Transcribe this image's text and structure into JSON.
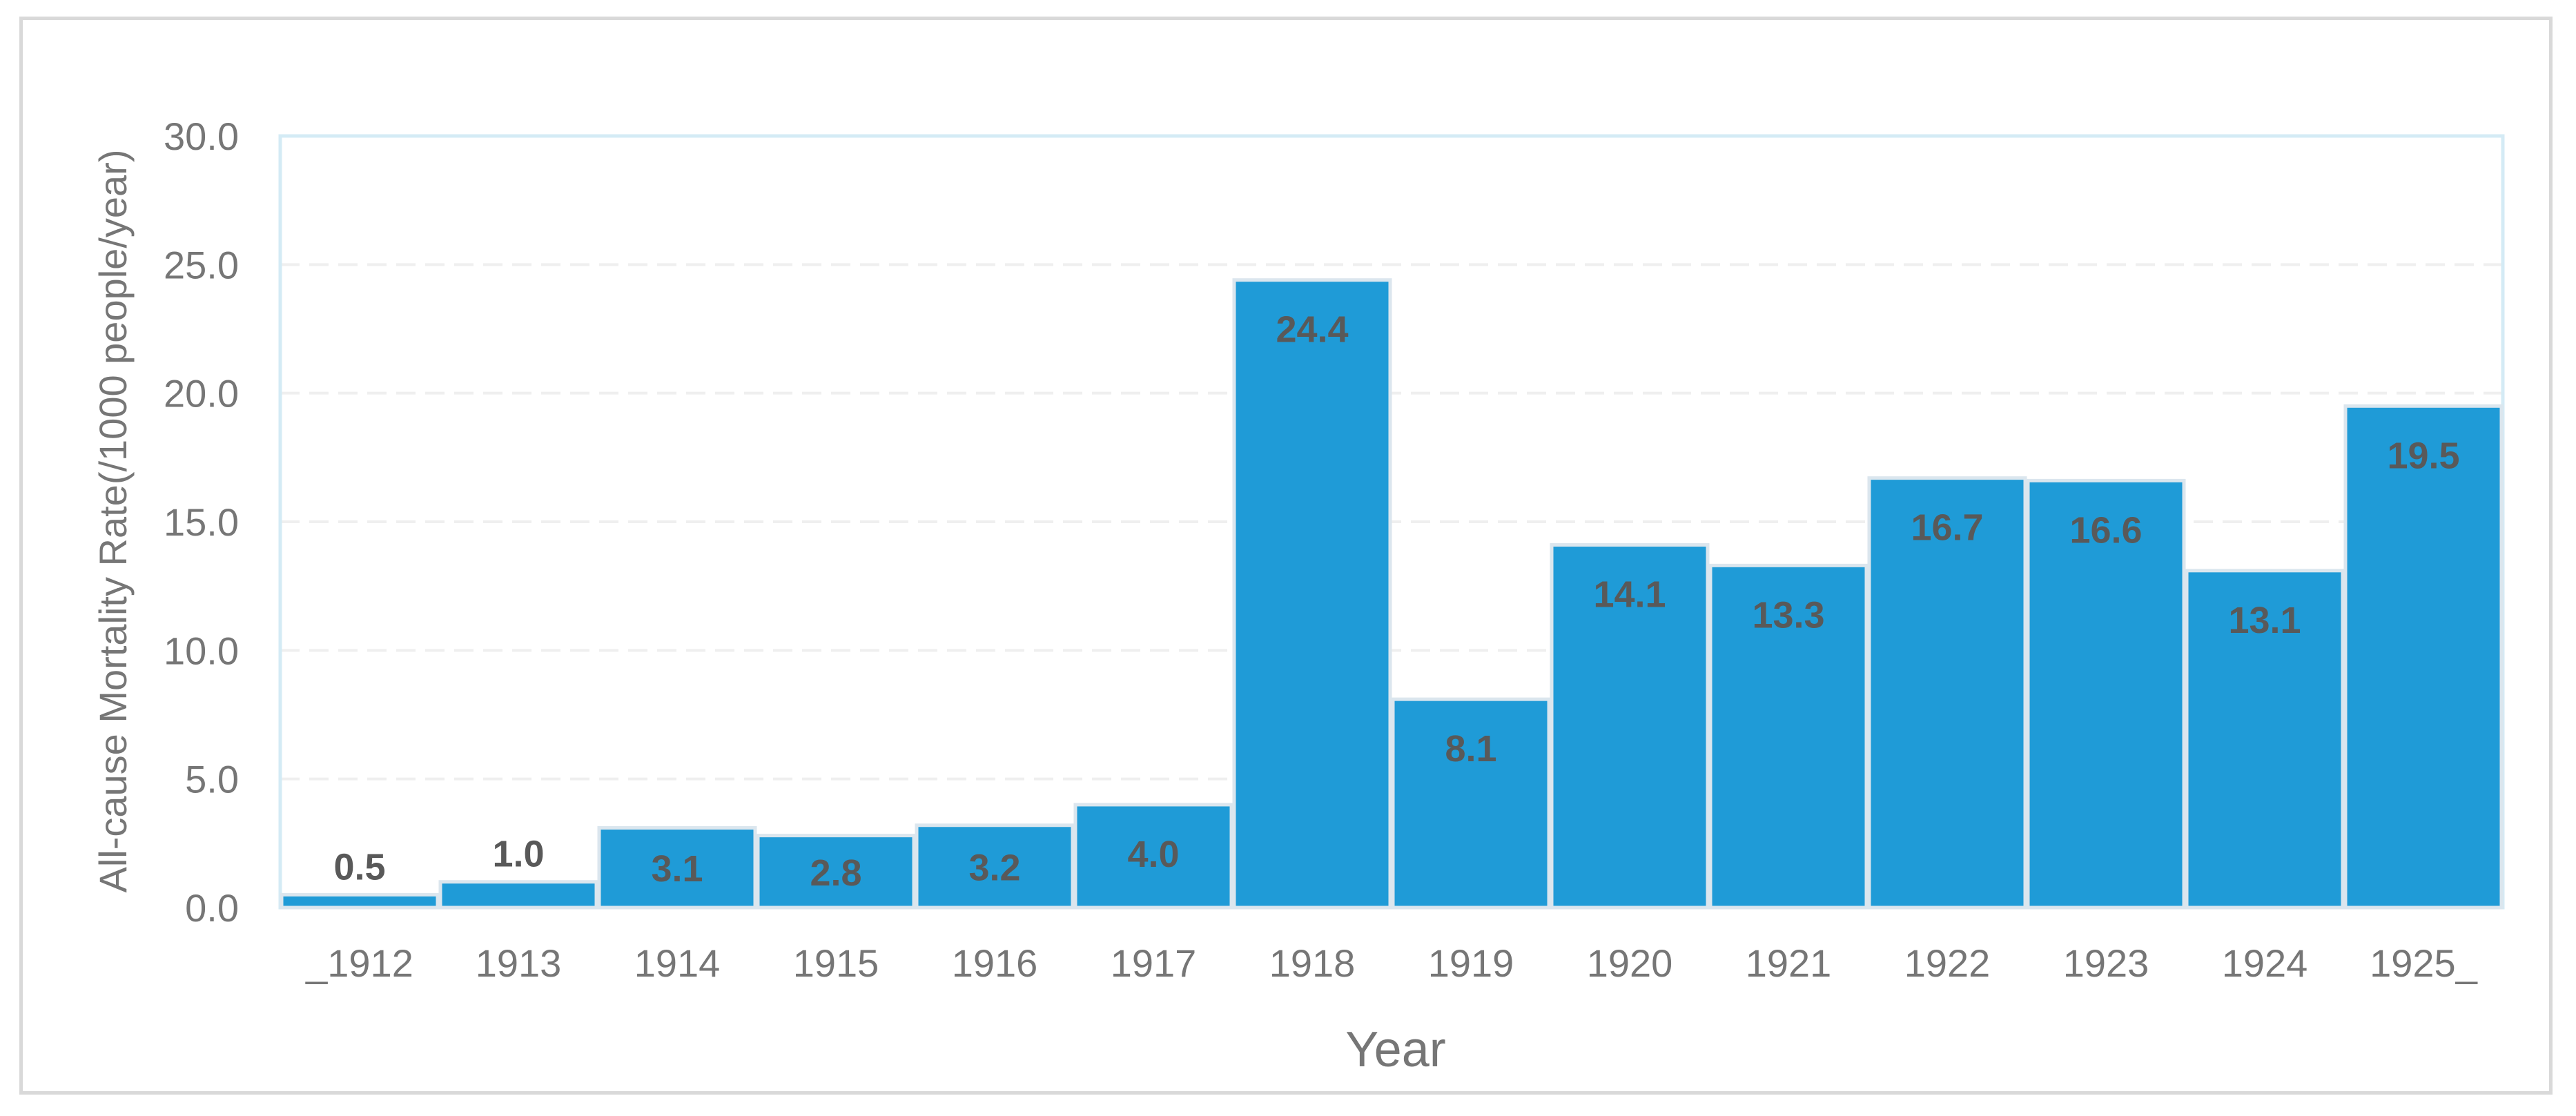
{
  "chart_data": {
    "type": "bar",
    "title": "",
    "xlabel": "Year",
    "ylabel": "All-cause Mortality Rate(/1000 people/year)",
    "categories": [
      "_1912",
      "1913",
      "1914",
      "1915",
      "1916",
      "1917",
      "1918",
      "1919",
      "1920",
      "1921",
      "1922",
      "1923",
      "1924",
      "1925_"
    ],
    "values": [
      0.5,
      1.0,
      3.1,
      2.8,
      3.2,
      4.0,
      24.4,
      8.1,
      14.1,
      13.3,
      16.7,
      16.6,
      13.1,
      19.5
    ],
    "data_labels": [
      "0.5",
      "1.0",
      "3.1",
      "2.8",
      "3.2",
      "4.0",
      "24.4",
      "8.1",
      "14.1",
      "13.3",
      "16.7",
      "16.6",
      "13.1",
      "19.5"
    ],
    "ylim": [
      0,
      30
    ],
    "yticks": [
      0,
      5,
      10,
      15,
      20,
      25,
      30
    ],
    "ytick_labels": [
      "0.0",
      "5.0",
      "10.0",
      "15.0",
      "20.0",
      "25.0",
      "30.0"
    ],
    "grid": "horizontal dashed",
    "legend": "none",
    "colors": {
      "bar": "#1f9bd7",
      "bar_edge": "#dbe6ee",
      "label": "#595959",
      "axis_text": "#767676",
      "plot_border": "#d4ebf5",
      "grid": "#efefef"
    }
  }
}
